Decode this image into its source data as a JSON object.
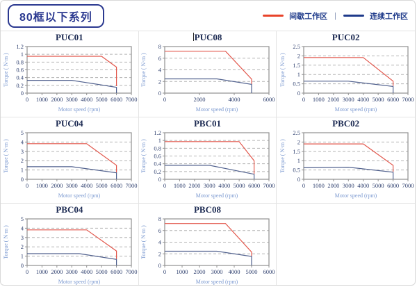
{
  "header": {
    "title": "80框以下系列",
    "legend_separator": "|",
    "legend": [
      {
        "label": "间歇工作区",
        "color": "#e8432a"
      },
      {
        "label": "连续工作区",
        "color": "#1e3a8a"
      }
    ]
  },
  "colors": {
    "red_line": "#e2574c",
    "navy_line": "#51618e",
    "plot_border": "#8f8f8f",
    "grid_line": "#b3b3b3",
    "tick_text": "#2e3f6e",
    "axis_title_text": "#7b99d0"
  },
  "chart_data": [
    {
      "type": "line",
      "title": "PUC01",
      "cursor": false,
      "xlabel": "Motor speed (rpm)",
      "ylabel": "Torque ( N·m )",
      "xlim": [
        0,
        7000
      ],
      "xticks": [
        0,
        1000,
        2000,
        3000,
        4000,
        5000,
        6000,
        7000
      ],
      "ylim": [
        0,
        1.2
      ],
      "yticks": [
        0,
        0.2,
        0.4,
        0.6,
        0.8,
        1,
        1.2
      ],
      "grid": "dashed-horizontal",
      "legend_position": "none",
      "series": [
        {
          "name": "间歇工作区",
          "color": "red",
          "points": [
            [
              0,
              0.95
            ],
            [
              5000,
              0.95
            ],
            [
              6000,
              0.67
            ],
            [
              6000,
              0.18
            ]
          ]
        },
        {
          "name": "连续工作区",
          "color": "navy",
          "points": [
            [
              0,
              0.33
            ],
            [
              3000,
              0.33
            ],
            [
              6000,
              0.15
            ],
            [
              6000,
              0
            ]
          ]
        }
      ]
    },
    {
      "type": "line",
      "title": "PUC08",
      "cursor": true,
      "xlabel": "Motor speed (rpm)",
      "ylabel": "Torque ( N·m )",
      "xlim": [
        0,
        6000
      ],
      "xticks": [
        0,
        2000,
        4000,
        6000
      ],
      "ylim": [
        0,
        8
      ],
      "yticks": [
        0,
        2,
        4,
        6,
        8
      ],
      "grid": "dashed-horizontal",
      "legend_position": "none",
      "series": [
        {
          "name": "间歇工作区",
          "color": "red",
          "points": [
            [
              0,
              7.2
            ],
            [
              3500,
              7.2
            ],
            [
              5000,
              2.4
            ],
            [
              5000,
              1.5
            ]
          ]
        },
        {
          "name": "连续工作区",
          "color": "navy",
          "points": [
            [
              0,
              2.45
            ],
            [
              3000,
              2.45
            ],
            [
              5000,
              1.5
            ],
            [
              5000,
              0
            ]
          ]
        }
      ]
    },
    {
      "type": "line",
      "title": "PUC02",
      "cursor": false,
      "xlabel": "Motor speed (rpm)",
      "ylabel": "Torque ( N·m )",
      "xlim": [
        0,
        7000
      ],
      "xticks": [
        0,
        1000,
        2000,
        3000,
        4000,
        5000,
        6000,
        7000
      ],
      "ylim": [
        0,
        2.5
      ],
      "yticks": [
        0,
        0.5,
        1,
        1.5,
        2,
        2.5
      ],
      "grid": "dashed-horizontal",
      "legend_position": "none",
      "series": [
        {
          "name": "间歇工作区",
          "color": "red",
          "points": [
            [
              0,
              1.91
            ],
            [
              4000,
              1.91
            ],
            [
              6000,
              0.64
            ],
            [
              6000,
              0.38
            ]
          ]
        },
        {
          "name": "连续工作区",
          "color": "navy",
          "points": [
            [
              0,
              0.64
            ],
            [
              3000,
              0.64
            ],
            [
              6000,
              0.36
            ],
            [
              6000,
              0
            ]
          ]
        }
      ]
    },
    {
      "type": "line",
      "title": "PUC04",
      "cursor": false,
      "xlabel": "Motor speed (rpm)",
      "ylabel": "Torque ( N·m )",
      "xlim": [
        0,
        7000
      ],
      "xticks": [
        0,
        1000,
        2000,
        3000,
        4000,
        5000,
        6000,
        7000
      ],
      "ylim": [
        0,
        5
      ],
      "yticks": [
        0,
        1,
        2,
        3,
        4,
        5
      ],
      "grid": "dashed-horizontal",
      "legend_position": "none",
      "series": [
        {
          "name": "间歇工作区",
          "color": "red",
          "points": [
            [
              0,
              3.82
            ],
            [
              4000,
              3.82
            ],
            [
              6000,
              1.5
            ],
            [
              6000,
              0.72
            ]
          ]
        },
        {
          "name": "连续工作区",
          "color": "navy",
          "points": [
            [
              0,
              1.35
            ],
            [
              3000,
              1.35
            ],
            [
              6000,
              0.7
            ],
            [
              6000,
              0
            ]
          ]
        }
      ]
    },
    {
      "type": "line",
      "title": "PBC01",
      "cursor": false,
      "xlabel": "Motor speed (rpm)",
      "ylabel": "Torque ( N·m )",
      "xlim": [
        0,
        7000
      ],
      "xticks": [
        0,
        1000,
        2000,
        3000,
        4000,
        5000,
        6000,
        7000
      ],
      "ylim": [
        0,
        1.2
      ],
      "yticks": [
        0,
        0.2,
        0.4,
        0.6,
        0.8,
        1,
        1.2
      ],
      "grid": "dashed-horizontal",
      "legend_position": "none",
      "series": [
        {
          "name": "间歇工作区",
          "color": "red",
          "points": [
            [
              0,
              0.97
            ],
            [
              5000,
              0.97
            ],
            [
              6000,
              0.48
            ],
            [
              6000,
              0.14
            ]
          ]
        },
        {
          "name": "连续工作区",
          "color": "navy",
          "points": [
            [
              0,
              0.36
            ],
            [
              3000,
              0.36
            ],
            [
              6000,
              0.13
            ],
            [
              6000,
              0
            ]
          ]
        }
      ]
    },
    {
      "type": "line",
      "title": "PBC02",
      "cursor": false,
      "xlabel": "Motor speed (rpm)",
      "ylabel": "Torque ( N·m )",
      "xlim": [
        0,
        7000
      ],
      "xticks": [
        0,
        1000,
        2000,
        3000,
        4000,
        5000,
        6000,
        7000
      ],
      "ylim": [
        0,
        2.5
      ],
      "yticks": [
        0,
        0.5,
        1,
        1.5,
        2,
        2.5
      ],
      "grid": "dashed-horizontal",
      "legend_position": "none",
      "series": [
        {
          "name": "间歇工作区",
          "color": "red",
          "points": [
            [
              0,
              1.9
            ],
            [
              4000,
              1.9
            ],
            [
              6000,
              0.75
            ],
            [
              6000,
              0.4
            ]
          ]
        },
        {
          "name": "连续工作区",
          "color": "navy",
          "points": [
            [
              0,
              0.62
            ],
            [
              3000,
              0.65
            ],
            [
              6000,
              0.38
            ],
            [
              6000,
              0
            ]
          ]
        }
      ]
    },
    {
      "type": "line",
      "title": "PBC04",
      "cursor": false,
      "xlabel": "Motor speed (rpm)",
      "ylabel": "Torque ( N·m )",
      "xlim": [
        0,
        7000
      ],
      "xticks": [
        0,
        1000,
        2000,
        3000,
        4000,
        5000,
        6000,
        7000
      ],
      "ylim": [
        0,
        5
      ],
      "yticks": [
        0,
        1,
        2,
        3,
        4,
        5
      ],
      "grid": "dashed-horizontal",
      "legend_position": "none",
      "series": [
        {
          "name": "间歇工作区",
          "color": "red",
          "points": [
            [
              0,
              3.82
            ],
            [
              4000,
              3.82
            ],
            [
              6000,
              1.55
            ],
            [
              6000,
              0.68
            ]
          ]
        },
        {
          "name": "连续工作区",
          "color": "navy",
          "points": [
            [
              0,
              1.27
            ],
            [
              3500,
              1.27
            ],
            [
              6000,
              0.65
            ],
            [
              6000,
              0
            ]
          ]
        }
      ]
    },
    {
      "type": "line",
      "title": "PBC08",
      "cursor": false,
      "xlabel": "Motor speed (rpm)",
      "ylabel": "Torque ( N·m )",
      "xlim": [
        0,
        6000
      ],
      "xticks": [
        0,
        1000,
        2000,
        3000,
        4000,
        5000,
        6000
      ],
      "ylim": [
        0,
        8
      ],
      "yticks": [
        0,
        2,
        4,
        6,
        8
      ],
      "grid": "dashed-horizontal",
      "legend_position": "none",
      "series": [
        {
          "name": "间歇工作区",
          "color": "red",
          "points": [
            [
              0,
              7.2
            ],
            [
              3500,
              7.2
            ],
            [
              5000,
              2.3
            ],
            [
              5000,
              1.6
            ]
          ]
        },
        {
          "name": "连续工作区",
          "color": "navy",
          "points": [
            [
              0,
              2.45
            ],
            [
              3000,
              2.45
            ],
            [
              5000,
              1.55
            ],
            [
              5000,
              0
            ]
          ]
        }
      ]
    }
  ]
}
